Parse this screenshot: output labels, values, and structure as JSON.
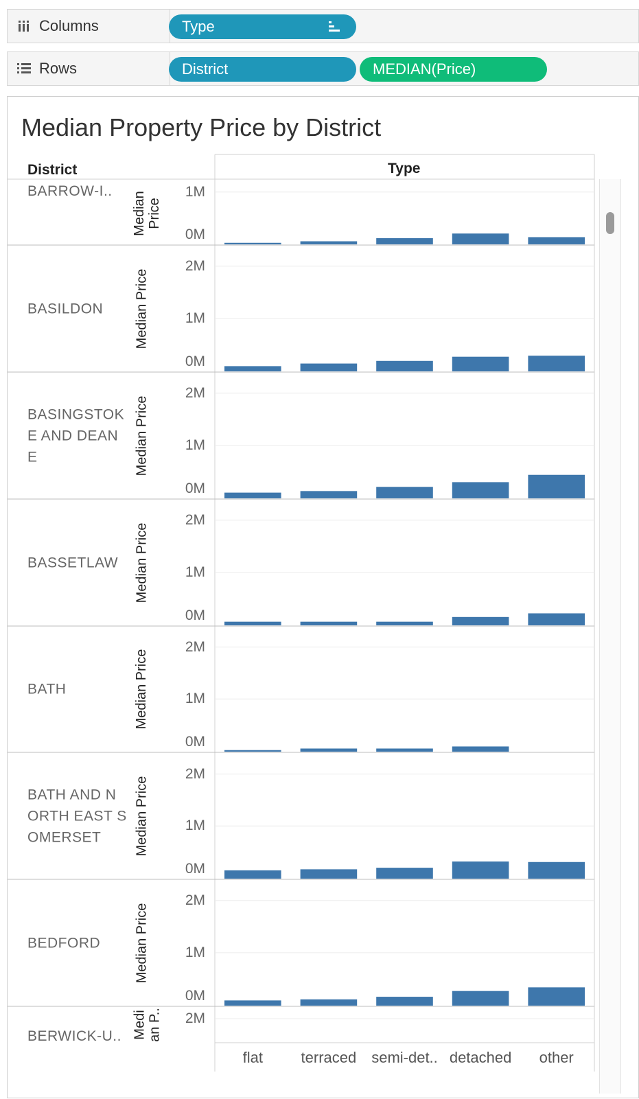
{
  "shelves": {
    "columns": {
      "label": "Columns",
      "pills": [
        {
          "text": "Type",
          "icon": "sort-descending-icon"
        }
      ]
    },
    "rows": {
      "label": "Rows",
      "pills": [
        {
          "text": "District"
        },
        {
          "text": "MEDIAN(Price)"
        }
      ]
    }
  },
  "sheet": {
    "title": "Median Property Price by District",
    "row_header": "District",
    "column_header": "Type",
    "colors": {
      "bar": "#3e77ac",
      "pill_dimension": "#1f97b9",
      "pill_measure": "#0fbc79"
    }
  },
  "chart_data": {
    "type": "bar",
    "categories": [
      "flat",
      "terraced",
      "semi-det..",
      "detached",
      "other"
    ],
    "ylabel": "Median Price",
    "ylabel_short": [
      "Median",
      "Price"
    ],
    "ylabel_truncated": [
      "Medi",
      "an P.."
    ],
    "panels": [
      {
        "district": "BARROW-I..",
        "ymax": 1,
        "ticks": [
          "1M",
          "0M"
        ],
        "values_m": [
          0.03,
          0.06,
          0.12,
          0.21,
          0.14
        ]
      },
      {
        "district": "BASILDON",
        "ymax": 2,
        "ticks": [
          "2M",
          "1M",
          "0M"
        ],
        "values_m": [
          0.1,
          0.15,
          0.2,
          0.28,
          0.3
        ]
      },
      {
        "district": "BASINGSTOKE AND DEANE",
        "ymax": 2,
        "ticks": [
          "2M",
          "1M",
          "0M"
        ],
        "values_m": [
          0.11,
          0.14,
          0.22,
          0.31,
          0.45
        ]
      },
      {
        "district": "BASSETLAW",
        "ymax": 2,
        "ticks": [
          "2M",
          "1M",
          "0M"
        ],
        "values_m": [
          0.07,
          0.07,
          0.07,
          0.16,
          0.23
        ]
      },
      {
        "district": "BATH",
        "ymax": 2,
        "ticks": [
          "2M",
          "1M",
          "0M"
        ],
        "values_m": [
          0.03,
          0.06,
          0.06,
          0.1,
          null
        ]
      },
      {
        "district": "BATH AND NORTH EAST SOMERSET",
        "ymax": 2,
        "ticks": [
          "2M",
          "1M",
          "0M"
        ],
        "values_m": [
          0.16,
          0.18,
          0.21,
          0.33,
          0.32
        ]
      },
      {
        "district": "BEDFORD",
        "ymax": 2,
        "ticks": [
          "2M",
          "1M",
          "0M"
        ],
        "values_m": [
          0.1,
          0.12,
          0.17,
          0.28,
          0.35
        ]
      },
      {
        "district": "BERWICK-U..",
        "ymax": 2,
        "ticks": [
          "2M"
        ],
        "values_m": []
      }
    ]
  }
}
